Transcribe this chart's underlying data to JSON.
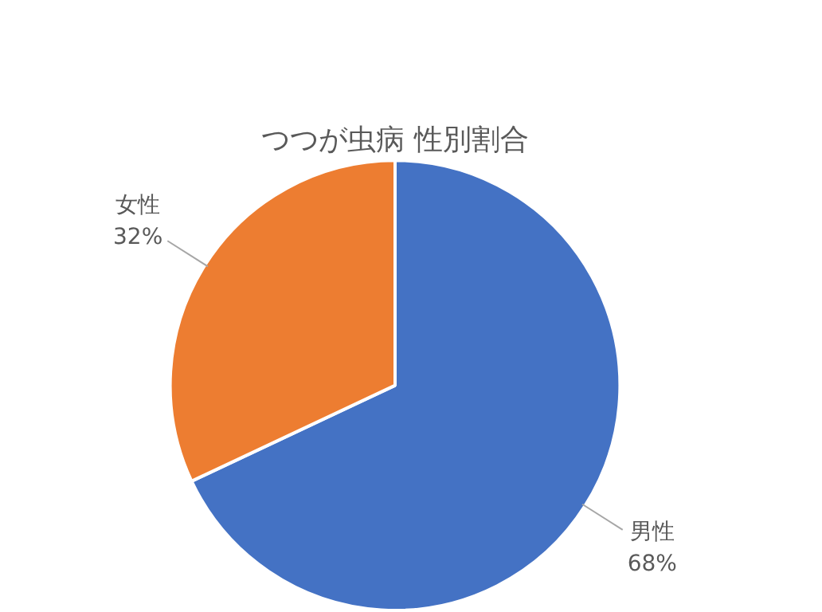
{
  "chart_data": {
    "type": "pie",
    "title": "つつが虫病 性別割合",
    "categories": [
      "男性",
      "女性"
    ],
    "values": [
      68,
      32
    ],
    "value_labels": [
      "68%",
      "32%"
    ],
    "colors": [
      "#4472c4",
      "#ed7d31"
    ],
    "legend": false
  }
}
